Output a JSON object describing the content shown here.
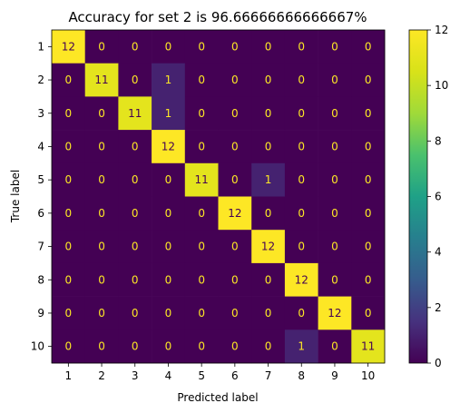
{
  "chart_data": {
    "type": "heatmap",
    "title": "Accuracy for set 2 is 96.66666666666667%",
    "xlabel": "Predicted label",
    "ylabel": "True label",
    "x_categories": [
      "1",
      "2",
      "3",
      "4",
      "5",
      "6",
      "7",
      "8",
      "9",
      "10"
    ],
    "y_categories": [
      "1",
      "2",
      "3",
      "4",
      "5",
      "6",
      "7",
      "8",
      "9",
      "10"
    ],
    "values": [
      [
        12,
        0,
        0,
        0,
        0,
        0,
        0,
        0,
        0,
        0
      ],
      [
        0,
        11,
        0,
        1,
        0,
        0,
        0,
        0,
        0,
        0
      ],
      [
        0,
        0,
        11,
        1,
        0,
        0,
        0,
        0,
        0,
        0
      ],
      [
        0,
        0,
        0,
        12,
        0,
        0,
        0,
        0,
        0,
        0
      ],
      [
        0,
        0,
        0,
        0,
        11,
        0,
        1,
        0,
        0,
        0
      ],
      [
        0,
        0,
        0,
        0,
        0,
        12,
        0,
        0,
        0,
        0
      ],
      [
        0,
        0,
        0,
        0,
        0,
        0,
        12,
        0,
        0,
        0
      ],
      [
        0,
        0,
        0,
        0,
        0,
        0,
        0,
        12,
        0,
        0
      ],
      [
        0,
        0,
        0,
        0,
        0,
        0,
        0,
        0,
        12,
        0
      ],
      [
        0,
        0,
        0,
        0,
        0,
        0,
        0,
        1,
        0,
        11
      ]
    ],
    "colormap": "viridis",
    "vmin": 0,
    "vmax": 12,
    "colorbar_ticks": [
      "0",
      "2",
      "4",
      "6",
      "8",
      "10",
      "12"
    ],
    "text_color_dark_cells": "#fde725",
    "text_color_light_cells": "#440154"
  }
}
